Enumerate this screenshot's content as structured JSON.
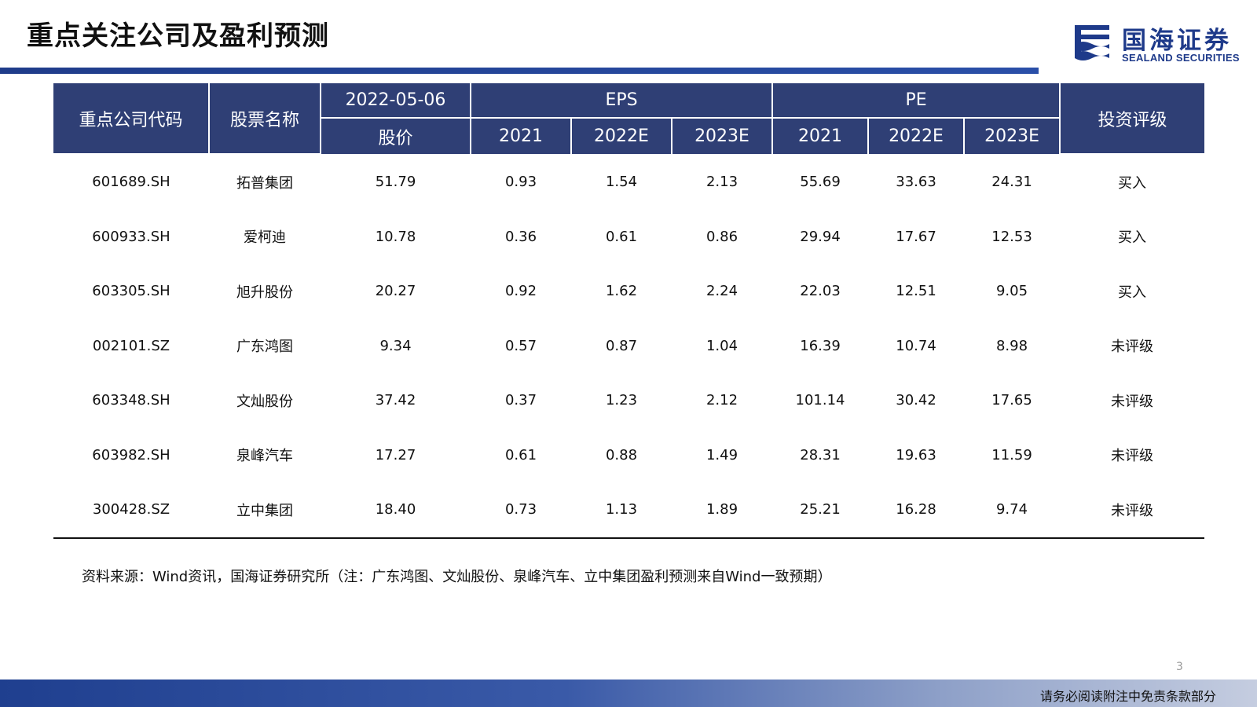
{
  "page": {
    "title": "重点关注公司及盈利预测",
    "page_number": "3",
    "disclaimer": "请务必阅读附注中免责条款部分"
  },
  "logo": {
    "name_cn": "国海证券",
    "name_en": "SEALAND SECURITIES",
    "color": "#1e3a8a"
  },
  "table": {
    "header": {
      "code": "重点公司代码",
      "name": "股票名称",
      "date": "2022-05-06",
      "price": "股价",
      "eps": "EPS",
      "pe": "PE",
      "rating": "投资评级",
      "eps_years": [
        "2021",
        "2022E",
        "2023E"
      ],
      "pe_years": [
        "2021",
        "2022E",
        "2023E"
      ]
    },
    "rows": [
      {
        "code": "601689.SH",
        "name": "拓普集团",
        "price": "51.79",
        "eps": [
          "0.93",
          "1.54",
          "2.13"
        ],
        "pe": [
          "55.69",
          "33.63",
          "24.31"
        ],
        "rating": "买入"
      },
      {
        "code": "600933.SH",
        "name": "爱柯迪",
        "price": "10.78",
        "eps": [
          "0.36",
          "0.61",
          "0.86"
        ],
        "pe": [
          "29.94",
          "17.67",
          "12.53"
        ],
        "rating": "买入"
      },
      {
        "code": "603305.SH",
        "name": "旭升股份",
        "price": "20.27",
        "eps": [
          "0.92",
          "1.62",
          "2.24"
        ],
        "pe": [
          "22.03",
          "12.51",
          "9.05"
        ],
        "rating": "买入"
      },
      {
        "code": "002101.SZ",
        "name": "广东鸿图",
        "price": "9.34",
        "eps": [
          "0.57",
          "0.87",
          "1.04"
        ],
        "pe": [
          "16.39",
          "10.74",
          "8.98"
        ],
        "rating": "未评级"
      },
      {
        "code": "603348.SH",
        "name": "文灿股份",
        "price": "37.42",
        "eps": [
          "0.37",
          "1.23",
          "2.12"
        ],
        "pe": [
          "101.14",
          "30.42",
          "17.65"
        ],
        "rating": "未评级"
      },
      {
        "code": "603982.SH",
        "name": "泉峰汽车",
        "price": "17.27",
        "eps": [
          "0.61",
          "0.88",
          "1.49"
        ],
        "pe": [
          "28.31",
          "19.63",
          "11.59"
        ],
        "rating": "未评级"
      },
      {
        "code": "300428.SZ",
        "name": "立中集团",
        "price": "18.40",
        "eps": [
          "0.73",
          "1.13",
          "1.89"
        ],
        "pe": [
          "25.21",
          "16.28",
          "9.74"
        ],
        "rating": "未评级"
      }
    ]
  },
  "source_note": "资料来源：Wind资讯，国海证券研究所（注：广东鸿图、文灿股份、泉峰汽车、立中集团盈利预测来自Wind一致预期）",
  "colors": {
    "header_bg": "#2f3f75",
    "accent": "#1f3c8a"
  }
}
